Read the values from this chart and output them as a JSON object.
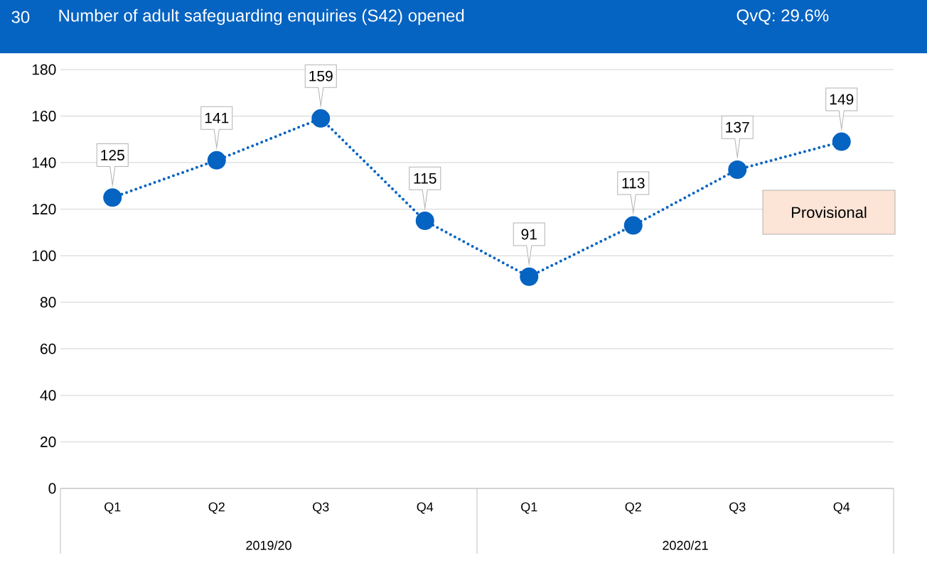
{
  "chart_data": {
    "type": "line",
    "title": "Number of adult safeguarding enquiries (S42) opened",
    "categories": [
      "Q1",
      "Q2",
      "Q3",
      "Q4",
      "Q1",
      "Q2",
      "Q3",
      "Q4"
    ],
    "values": [
      125,
      141,
      159,
      115,
      91,
      113,
      137,
      149
    ],
    "color": "#0563c1",
    "marker": "circle",
    "line_style": "dotted",
    "data_labels": true,
    "grid": "y",
    "ylim": [
      0,
      180
    ],
    "yticks": [
      0,
      20,
      40,
      60,
      80,
      100,
      120,
      140,
      160,
      180
    ],
    "annotations": [
      "30",
      "QvQ: 29.6%",
      "Provisional",
      "2019/20",
      "2020/21"
    ]
  }
}
